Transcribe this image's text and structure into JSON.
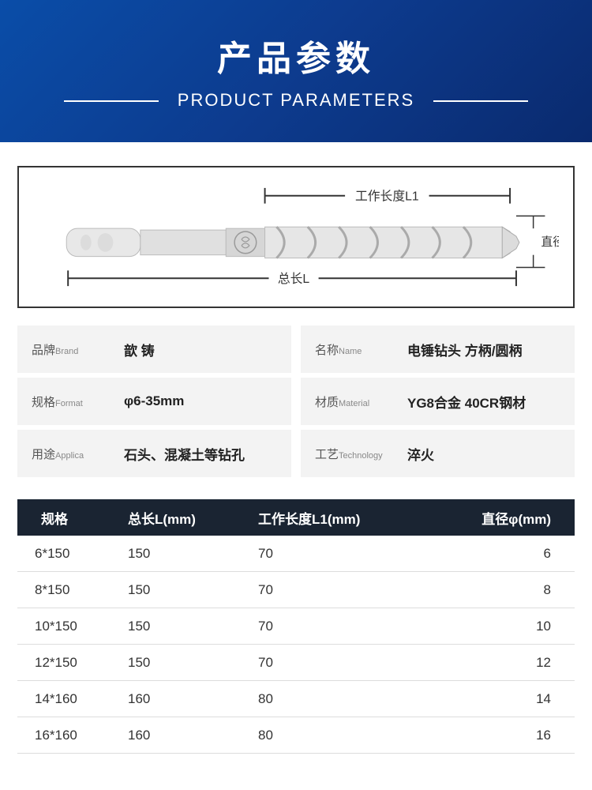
{
  "header": {
    "title_cn": "产品参数",
    "title_en": "PRODUCT PARAMETERS",
    "bg_gradient": [
      "#0a4da8",
      "#0d3b8e",
      "#0a2a6e"
    ]
  },
  "diagram": {
    "labels": {
      "working_length": "工作长度L1",
      "total_length": "总长L",
      "diameter": "直径Φ"
    },
    "line_color": "#333333",
    "drill_color": "#d8d8d8"
  },
  "attributes": [
    {
      "label_cn": "品牌",
      "label_en": "Brand",
      "value": "歆 铸"
    },
    {
      "label_cn": "名称",
      "label_en": "Name",
      "value": "电锤钻头  方柄/圆柄"
    },
    {
      "label_cn": "规格",
      "label_en": "Format",
      "value": "φ6-35mm"
    },
    {
      "label_cn": "材质",
      "label_en": "Material",
      "value": "YG8合金 40CR钢材"
    },
    {
      "label_cn": "用途",
      "label_en": "Applica",
      "value": "石头、混凝土等钻孔"
    },
    {
      "label_cn": "工艺",
      "label_en": "Technology",
      "value": "淬火"
    }
  ],
  "spec_table": {
    "head_bg": "#1a2432",
    "columns": [
      "规格",
      "总长L(mm)",
      "工作长度L1(mm)",
      "直径φ(mm)"
    ],
    "rows": [
      [
        "6*150",
        "150",
        "70",
        "6"
      ],
      [
        "8*150",
        "150",
        "70",
        "8"
      ],
      [
        "10*150",
        "150",
        "70",
        "10"
      ],
      [
        "12*150",
        "150",
        "70",
        "12"
      ],
      [
        "14*160",
        "160",
        "80",
        "14"
      ],
      [
        "16*160",
        "160",
        "80",
        "16"
      ]
    ]
  }
}
